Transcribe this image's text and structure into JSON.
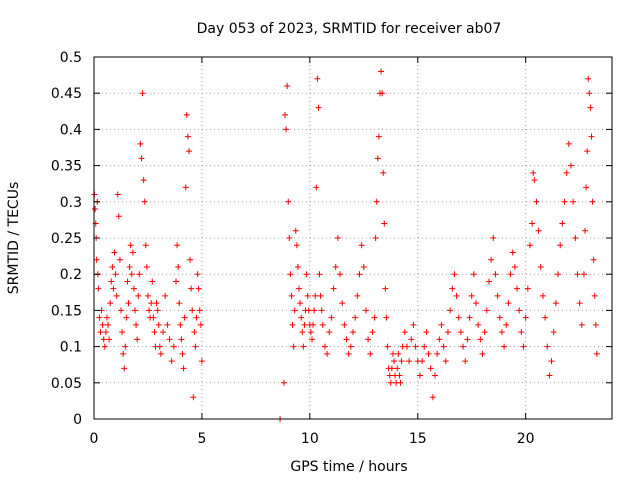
{
  "chart_data": {
    "type": "scatter",
    "title": "Day 053 of 2023, SRMTID for receiver ab07",
    "xlabel": "GPS time / hours",
    "ylabel": "SRMTID / TECUs",
    "xlim": [
      0,
      24
    ],
    "ylim": [
      0,
      0.5
    ],
    "x_ticks": [
      0,
      5,
      10,
      15,
      20
    ],
    "x_tick_labels": [
      "0",
      "5",
      "10",
      "15",
      "20"
    ],
    "y_ticks": [
      0,
      0.05,
      0.1,
      0.15,
      0.2,
      0.25,
      0.3,
      0.35,
      0.4,
      0.45,
      0.5
    ],
    "y_tick_labels": [
      "0",
      "0.05",
      "0.1",
      "0.15",
      "0.2",
      "0.25",
      "0.3",
      "0.35",
      "0.4",
      "0.45",
      "0.5"
    ],
    "grid": true,
    "marker": "+",
    "color": "#ff0000",
    "series": [
      {
        "name": "SRMTID",
        "points": [
          [
            0.02,
            0.31
          ],
          [
            0.05,
            0.29
          ],
          [
            0.08,
            0.27
          ],
          [
            0.1,
            0.25
          ],
          [
            0.12,
            0.22
          ],
          [
            0.15,
            0.3
          ],
          [
            0.18,
            0.2
          ],
          [
            0.2,
            0.18
          ],
          [
            0.25,
            0.14
          ],
          [
            0.3,
            0.12
          ],
          [
            0.35,
            0.15
          ],
          [
            0.4,
            0.13
          ],
          [
            0.45,
            0.11
          ],
          [
            0.5,
            0.1
          ],
          [
            0.55,
            0.12
          ],
          [
            0.6,
            0.14
          ],
          [
            0.65,
            0.13
          ],
          [
            0.7,
            0.11
          ],
          [
            0.75,
            0.16
          ],
          [
            0.8,
            0.19
          ],
          [
            0.85,
            0.21
          ],
          [
            0.9,
            0.18
          ],
          [
            0.95,
            0.23
          ],
          [
            1.0,
            0.2
          ],
          [
            1.05,
            0.17
          ],
          [
            1.1,
            0.31
          ],
          [
            1.15,
            0.28
          ],
          [
            1.2,
            0.22
          ],
          [
            1.25,
            0.15
          ],
          [
            1.3,
            0.12
          ],
          [
            1.35,
            0.09
          ],
          [
            1.4,
            0.07
          ],
          [
            1.45,
            0.1
          ],
          [
            1.5,
            0.14
          ],
          [
            1.55,
            0.19
          ],
          [
            1.6,
            0.16
          ],
          [
            1.65,
            0.21
          ],
          [
            1.7,
            0.24
          ],
          [
            1.75,
            0.2
          ],
          [
            1.8,
            0.23
          ],
          [
            1.85,
            0.18
          ],
          [
            1.9,
            0.15
          ],
          [
            1.95,
            0.13
          ],
          [
            2.0,
            0.11
          ],
          [
            2.05,
            0.17
          ],
          [
            2.1,
            0.2
          ],
          [
            2.15,
            0.38
          ],
          [
            2.2,
            0.36
          ],
          [
            2.25,
            0.45
          ],
          [
            2.3,
            0.33
          ],
          [
            2.35,
            0.3
          ],
          [
            2.4,
            0.24
          ],
          [
            2.45,
            0.21
          ],
          [
            2.5,
            0.17
          ],
          [
            2.55,
            0.15
          ],
          [
            2.6,
            0.14
          ],
          [
            2.65,
            0.16
          ],
          [
            2.7,
            0.19
          ],
          [
            2.75,
            0.14
          ],
          [
            2.8,
            0.12
          ],
          [
            2.85,
            0.1
          ],
          [
            2.9,
            0.16
          ],
          [
            2.95,
            0.15
          ],
          [
            3.0,
            0.13
          ],
          [
            3.05,
            0.1
          ],
          [
            3.1,
            0.09
          ],
          [
            3.2,
            0.12
          ],
          [
            3.3,
            0.17
          ],
          [
            3.4,
            0.13
          ],
          [
            3.5,
            0.11
          ],
          [
            3.6,
            0.08
          ],
          [
            3.7,
            0.1
          ],
          [
            3.8,
            0.19
          ],
          [
            3.85,
            0.24
          ],
          [
            3.9,
            0.21
          ],
          [
            3.95,
            0.16
          ],
          [
            4.0,
            0.13
          ],
          [
            4.05,
            0.11
          ],
          [
            4.1,
            0.09
          ],
          [
            4.15,
            0.07
          ],
          [
            4.2,
            0.14
          ],
          [
            4.25,
            0.32
          ],
          [
            4.3,
            0.42
          ],
          [
            4.35,
            0.39
          ],
          [
            4.4,
            0.37
          ],
          [
            4.45,
            0.22
          ],
          [
            4.5,
            0.18
          ],
          [
            4.55,
            0.15
          ],
          [
            4.6,
            0.03
          ],
          [
            4.65,
            0.12
          ],
          [
            4.7,
            0.1
          ],
          [
            4.75,
            0.14
          ],
          [
            4.8,
            0.2
          ],
          [
            4.85,
            0.18
          ],
          [
            4.9,
            0.15
          ],
          [
            4.95,
            0.13
          ],
          [
            5.0,
            0.08
          ],
          [
            8.62,
            0.0
          ],
          [
            8.8,
            0.05
          ],
          [
            8.85,
            0.42
          ],
          [
            8.9,
            0.4
          ],
          [
            8.95,
            0.46
          ],
          [
            9.0,
            0.3
          ],
          [
            9.05,
            0.25
          ],
          [
            9.1,
            0.2
          ],
          [
            9.15,
            0.17
          ],
          [
            9.2,
            0.13
          ],
          [
            9.25,
            0.1
          ],
          [
            9.3,
            0.15
          ],
          [
            9.35,
            0.26
          ],
          [
            9.4,
            0.24
          ],
          [
            9.45,
            0.21
          ],
          [
            9.5,
            0.18
          ],
          [
            9.55,
            0.16
          ],
          [
            9.6,
            0.14
          ],
          [
            9.65,
            0.12
          ],
          [
            9.7,
            0.1
          ],
          [
            9.75,
            0.13
          ],
          [
            9.8,
            0.15
          ],
          [
            9.85,
            0.2
          ],
          [
            9.9,
            0.17
          ],
          [
            9.95,
            0.15
          ],
          [
            10.0,
            0.13
          ],
          [
            10.05,
            0.12
          ],
          [
            10.1,
            0.11
          ],
          [
            10.15,
            0.13
          ],
          [
            10.2,
            0.15
          ],
          [
            10.25,
            0.17
          ],
          [
            10.3,
            0.32
          ],
          [
            10.35,
            0.47
          ],
          [
            10.4,
            0.43
          ],
          [
            10.45,
            0.2
          ],
          [
            10.5,
            0.17
          ],
          [
            10.55,
            0.15
          ],
          [
            10.6,
            0.13
          ],
          [
            10.7,
            0.1
          ],
          [
            10.8,
            0.09
          ],
          [
            10.9,
            0.12
          ],
          [
            11.0,
            0.14
          ],
          [
            11.1,
            0.18
          ],
          [
            11.2,
            0.21
          ],
          [
            11.3,
            0.25
          ],
          [
            11.4,
            0.2
          ],
          [
            11.5,
            0.16
          ],
          [
            11.6,
            0.13
          ],
          [
            11.7,
            0.11
          ],
          [
            11.8,
            0.09
          ],
          [
            11.9,
            0.1
          ],
          [
            12.0,
            0.12
          ],
          [
            12.1,
            0.14
          ],
          [
            12.2,
            0.17
          ],
          [
            12.3,
            0.2
          ],
          [
            12.4,
            0.24
          ],
          [
            12.5,
            0.21
          ],
          [
            12.6,
            0.15
          ],
          [
            12.7,
            0.11
          ],
          [
            12.8,
            0.09
          ],
          [
            12.9,
            0.12
          ],
          [
            13.0,
            0.14
          ],
          [
            13.05,
            0.25
          ],
          [
            13.1,
            0.3
          ],
          [
            13.15,
            0.36
          ],
          [
            13.2,
            0.39
          ],
          [
            13.25,
            0.45
          ],
          [
            13.3,
            0.48
          ],
          [
            13.35,
            0.45
          ],
          [
            13.4,
            0.34
          ],
          [
            13.45,
            0.27
          ],
          [
            13.5,
            0.18
          ],
          [
            13.55,
            0.14
          ],
          [
            13.6,
            0.1
          ],
          [
            13.65,
            0.07
          ],
          [
            13.7,
            0.06
          ],
          [
            13.75,
            0.05
          ],
          [
            13.8,
            0.07
          ],
          [
            13.85,
            0.09
          ],
          [
            13.9,
            0.08
          ],
          [
            13.95,
            0.06
          ],
          [
            14.0,
            0.05
          ],
          [
            14.05,
            0.07
          ],
          [
            14.1,
            0.09
          ],
          [
            14.15,
            0.06
          ],
          [
            14.2,
            0.05
          ],
          [
            14.25,
            0.08
          ],
          [
            14.3,
            0.1
          ],
          [
            14.4,
            0.12
          ],
          [
            14.5,
            0.1
          ],
          [
            14.6,
            0.08
          ],
          [
            14.7,
            0.11
          ],
          [
            14.8,
            0.13
          ],
          [
            14.9,
            0.1
          ],
          [
            15.0,
            0.08
          ],
          [
            15.1,
            0.06
          ],
          [
            15.2,
            0.08
          ],
          [
            15.3,
            0.1
          ],
          [
            15.4,
            0.12
          ],
          [
            15.5,
            0.09
          ],
          [
            15.6,
            0.07
          ],
          [
            15.7,
            0.03
          ],
          [
            15.8,
            0.06
          ],
          [
            15.9,
            0.09
          ],
          [
            16.0,
            0.11
          ],
          [
            16.1,
            0.13
          ],
          [
            16.2,
            0.1
          ],
          [
            16.3,
            0.08
          ],
          [
            16.4,
            0.12
          ],
          [
            16.5,
            0.15
          ],
          [
            16.6,
            0.18
          ],
          [
            16.7,
            0.2
          ],
          [
            16.8,
            0.17
          ],
          [
            16.9,
            0.14
          ],
          [
            17.0,
            0.12
          ],
          [
            17.1,
            0.1
          ],
          [
            17.2,
            0.08
          ],
          [
            17.3,
            0.11
          ],
          [
            17.4,
            0.14
          ],
          [
            17.5,
            0.17
          ],
          [
            17.6,
            0.2
          ],
          [
            17.7,
            0.16
          ],
          [
            17.8,
            0.13
          ],
          [
            17.9,
            0.11
          ],
          [
            18.0,
            0.09
          ],
          [
            18.1,
            0.12
          ],
          [
            18.2,
            0.15
          ],
          [
            18.3,
            0.19
          ],
          [
            18.4,
            0.22
          ],
          [
            18.5,
            0.25
          ],
          [
            18.6,
            0.2
          ],
          [
            18.7,
            0.17
          ],
          [
            18.8,
            0.14
          ],
          [
            18.9,
            0.12
          ],
          [
            19.0,
            0.1
          ],
          [
            19.1,
            0.13
          ],
          [
            19.2,
            0.16
          ],
          [
            19.3,
            0.2
          ],
          [
            19.4,
            0.23
          ],
          [
            19.5,
            0.21
          ],
          [
            19.6,
            0.18
          ],
          [
            19.7,
            0.15
          ],
          [
            19.8,
            0.12
          ],
          [
            19.9,
            0.1
          ],
          [
            20.0,
            0.14
          ],
          [
            20.1,
            0.18
          ],
          [
            20.2,
            0.24
          ],
          [
            20.3,
            0.27
          ],
          [
            20.35,
            0.34
          ],
          [
            20.4,
            0.33
          ],
          [
            20.5,
            0.3
          ],
          [
            20.6,
            0.26
          ],
          [
            20.7,
            0.21
          ],
          [
            20.8,
            0.17
          ],
          [
            20.9,
            0.14
          ],
          [
            21.0,
            0.1
          ],
          [
            21.1,
            0.06
          ],
          [
            21.2,
            0.08
          ],
          [
            21.3,
            0.12
          ],
          [
            21.4,
            0.16
          ],
          [
            21.5,
            0.2
          ],
          [
            21.6,
            0.24
          ],
          [
            21.7,
            0.27
          ],
          [
            21.8,
            0.3
          ],
          [
            21.9,
            0.34
          ],
          [
            22.0,
            0.38
          ],
          [
            22.1,
            0.35
          ],
          [
            22.2,
            0.3
          ],
          [
            22.3,
            0.25
          ],
          [
            22.4,
            0.2
          ],
          [
            22.5,
            0.16
          ],
          [
            22.6,
            0.13
          ],
          [
            22.7,
            0.2
          ],
          [
            22.75,
            0.26
          ],
          [
            22.8,
            0.32
          ],
          [
            22.85,
            0.37
          ],
          [
            22.9,
            0.47
          ],
          [
            22.95,
            0.45
          ],
          [
            23.0,
            0.43
          ],
          [
            23.05,
            0.39
          ],
          [
            23.1,
            0.3
          ],
          [
            23.15,
            0.22
          ],
          [
            23.2,
            0.17
          ],
          [
            23.25,
            0.13
          ],
          [
            23.3,
            0.09
          ]
        ]
      }
    ]
  }
}
